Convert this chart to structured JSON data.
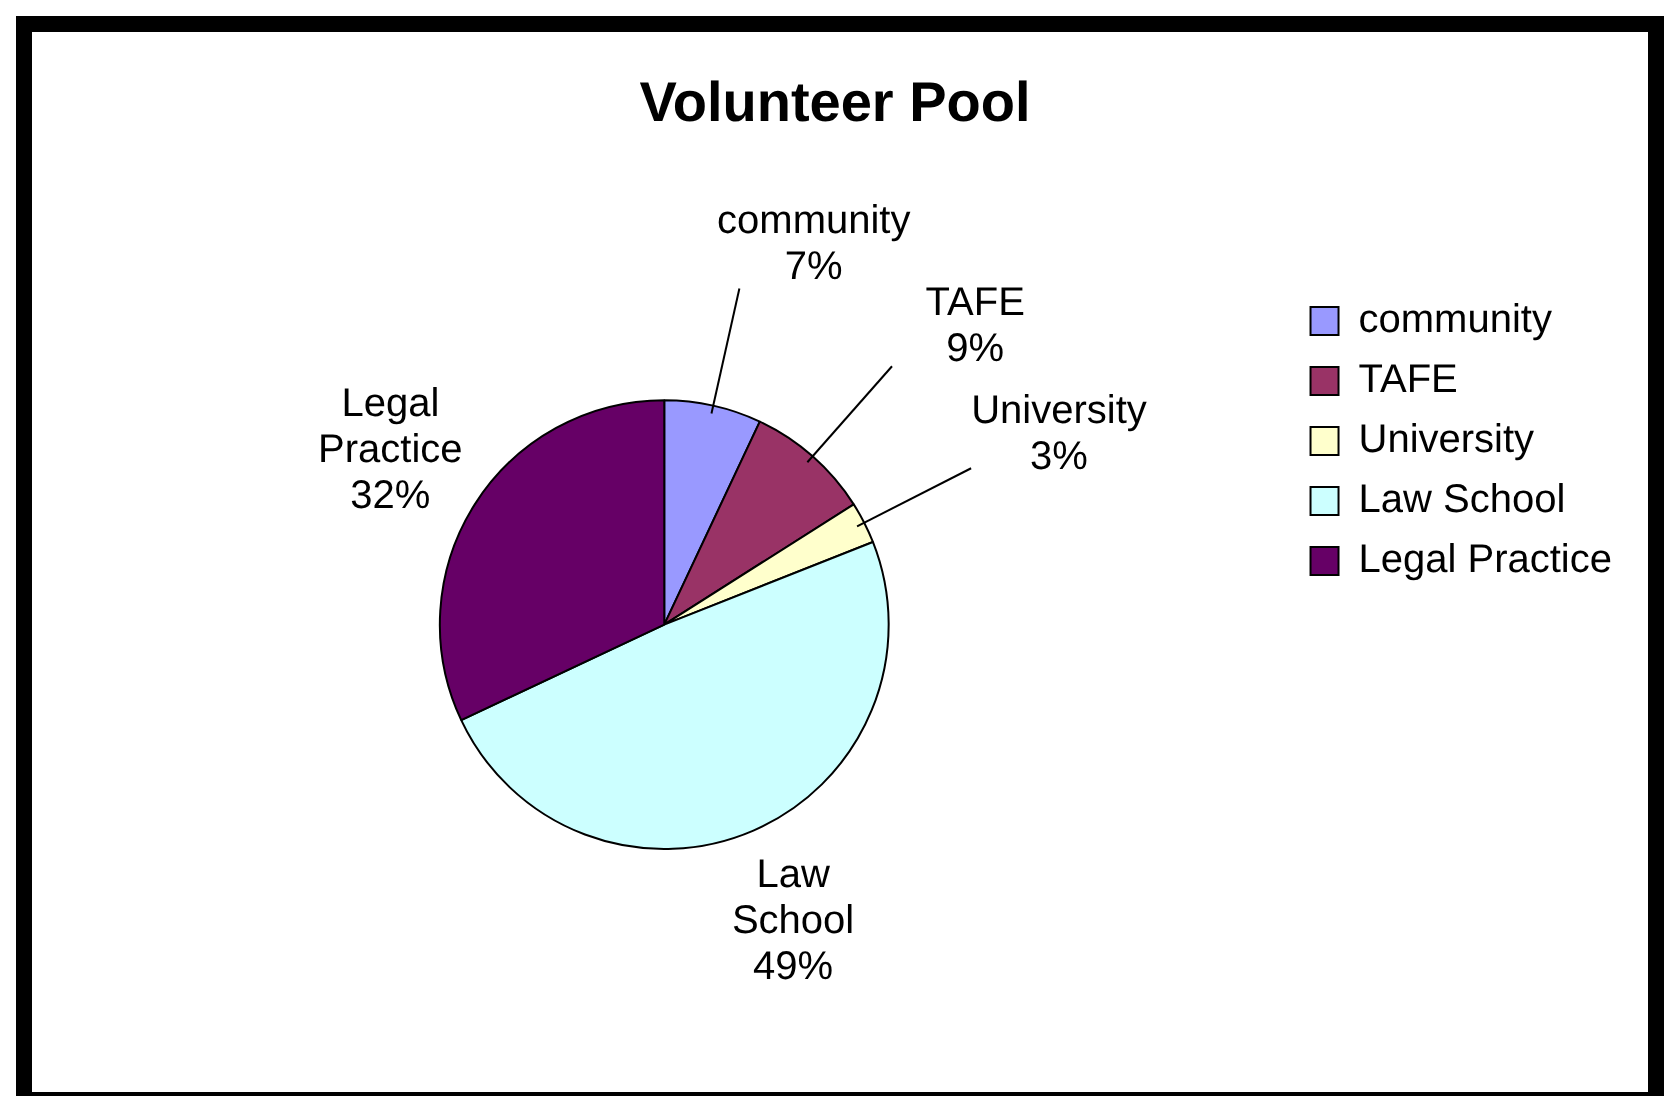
{
  "chart_data": {
    "type": "pie",
    "title": "Volunteer Pool",
    "categories": [
      "community",
      "TAFE",
      "University",
      "Law School",
      "Legal Practice"
    ],
    "values": [
      7,
      9,
      3,
      49,
      32
    ],
    "value_labels": [
      "7%",
      "9%",
      "3%",
      "49%",
      "32%"
    ],
    "colors": [
      "#9999ff",
      "#993366",
      "#ffffcc",
      "#ccffff",
      "#660066"
    ],
    "legend": "right",
    "data_labels": true
  }
}
